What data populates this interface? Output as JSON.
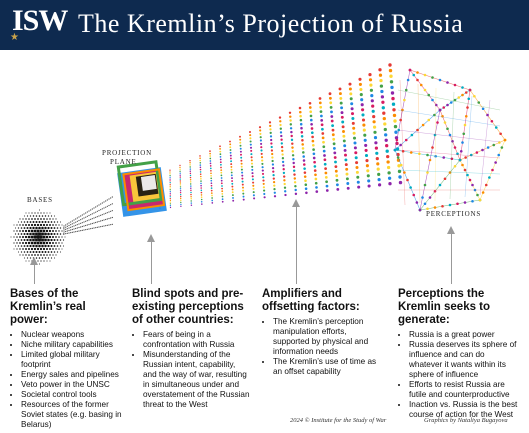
{
  "header": {
    "logo_text": "ISW",
    "title": "The Kremlin’s Projection of Russia"
  },
  "labels": {
    "bases": "BASES",
    "projection_plane_line1": "PROJECTION",
    "projection_plane_line2": "PLANE",
    "perceptions": "PERCEPTIONS"
  },
  "columns": [
    {
      "heading": "Bases of the Kremlin’s real power:",
      "items": [
        "Nuclear weapons",
        "Niche military capabilities",
        "Limited global military footprint",
        "Energy sales and pipelines",
        "Veto power in the UNSC",
        "Societal control tools",
        "Resources of the former Soviet states (e.g. basing in Belarus)"
      ]
    },
    {
      "heading": "Blind spots and pre-existing perceptions of other countries:",
      "items": [
        "Fears of being in a confrontation with Russia",
        "Misunderstanding of the Russian intent, capability, and the way of war, resulting in simultaneous under and overstatement of the Russian threat to the West"
      ]
    },
    {
      "heading": "Amplifiers and offsetting factors:",
      "items": [
        "The Kremlin’s perception manipulation efforts, supported by physical and information needs",
        "The Kremlin’s use of time as an offset capability"
      ]
    },
    {
      "heading": "Perceptions the Kremlin seeks to generate:",
      "items": [
        "Russia is a great power",
        "Russia deserves its sphere of influence and can do whatever it wants within its sphere of influence",
        "Efforts to resist Russia are futile and counterproductive",
        "Inaction vs. Russia is the best course of action for the West"
      ]
    }
  ],
  "footer": {
    "copyright": "2024 © Institute for the Study of War",
    "credit": "Graphics by Nataliya Bugayova"
  },
  "colors": {
    "banner": "#0e2a4f",
    "accent_gold": "#c9a24a",
    "rays": [
      "#e53935",
      "#fb8c00",
      "#fdd835",
      "#43a047",
      "#1e88e5",
      "#8e24aa",
      "#d81b60",
      "#00acc1"
    ]
  }
}
